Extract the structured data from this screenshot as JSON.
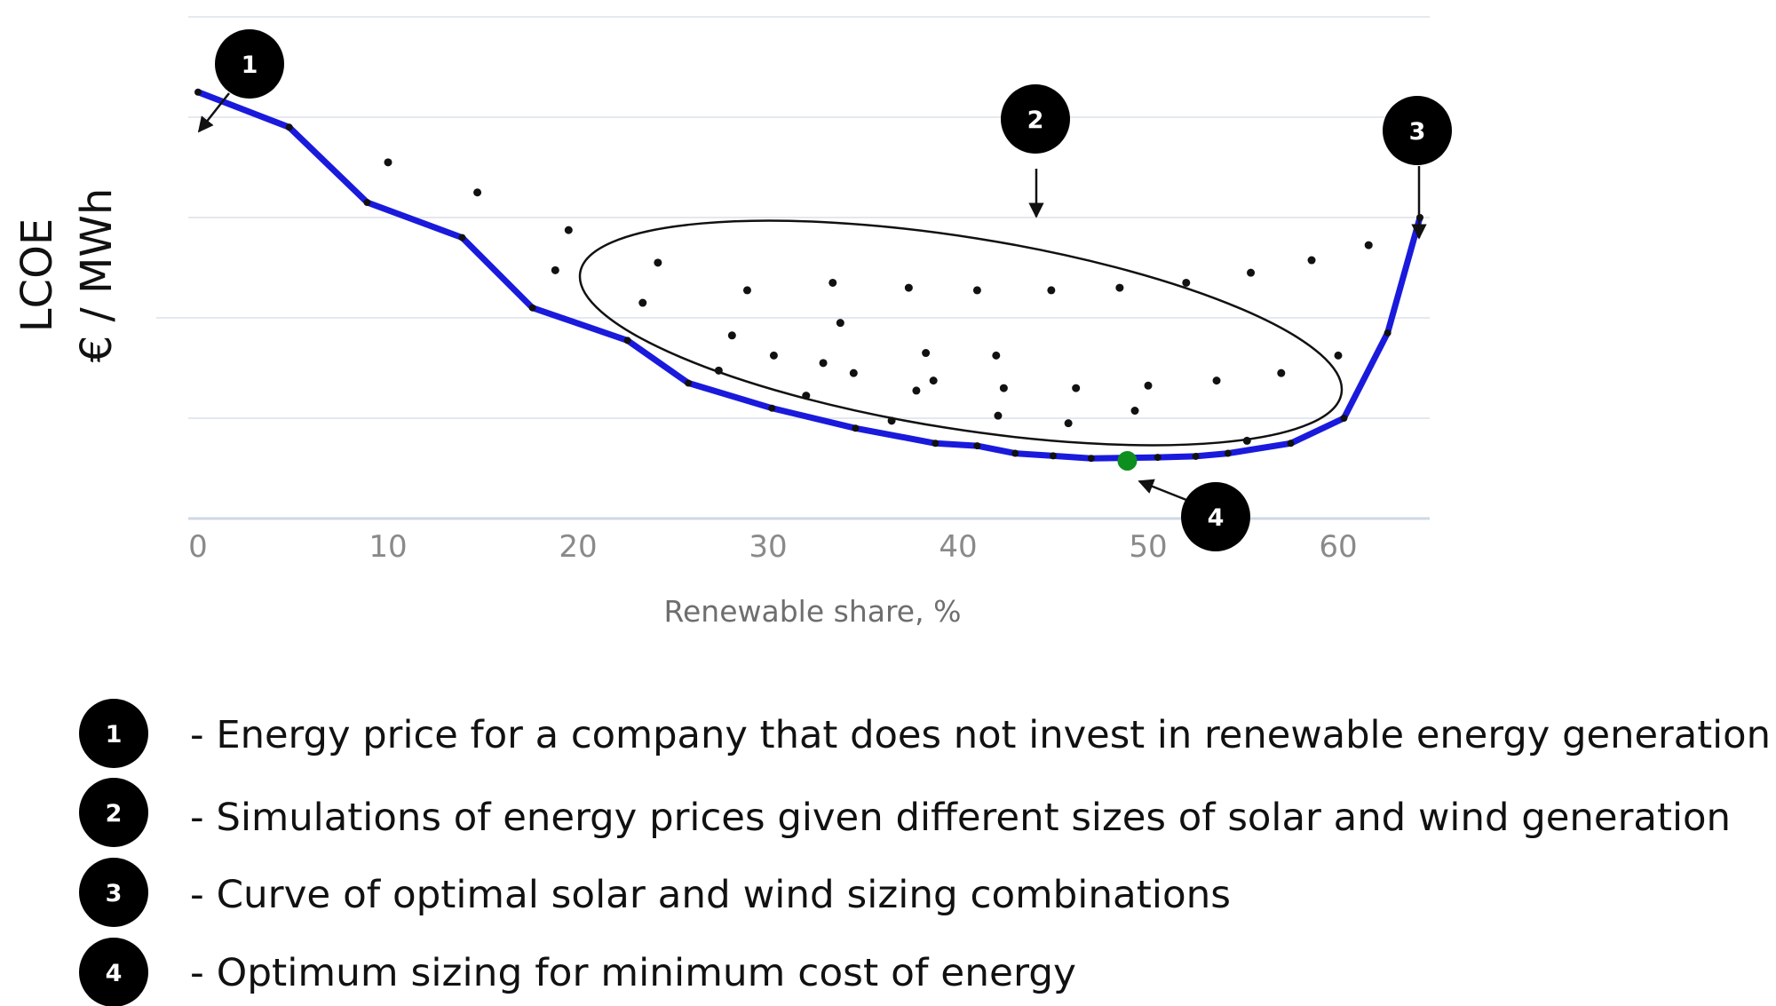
{
  "chart_data": {
    "type": "line",
    "title": "",
    "xlabel": "Renewable share, %",
    "ylabel_lines": [
      "LCOE",
      "€ / MWh"
    ],
    "xlim": [
      0,
      65
    ],
    "ylim": [
      0,
      100
    ],
    "xticks": [
      "0",
      "10",
      "20",
      "30",
      "40",
      "50",
      "60"
    ],
    "grid": true,
    "series": [
      {
        "name": "",
        "style": "line",
        "color": "#1a1adc",
        "x": [
          0,
          4.8,
          8.9,
          13.9,
          17.6,
          22.6,
          25.8,
          30.2,
          34.6,
          38.8,
          41,
          43,
          45,
          47,
          50.5,
          52.5,
          54.2,
          57.5,
          60.3,
          62.6,
          64.3
        ],
        "y": [
          85,
          78,
          63,
          56,
          42,
          35.5,
          27,
          22,
          18,
          15,
          14.5,
          13,
          12.5,
          12,
          12.2,
          12.4,
          13,
          15,
          20,
          37,
          60
        ]
      },
      {
        "name": "",
        "style": "scatter",
        "color": "#111111",
        "x": [
          10,
          14.7,
          18.8,
          19.5,
          23.4,
          24.2,
          27.4,
          28.1,
          28.9,
          30.3,
          32,
          32.9,
          33.4,
          33.8,
          34.5,
          36.5,
          37.4,
          37.8,
          38.3,
          38.7,
          41,
          42,
          42.1,
          42.4,
          44.9,
          45.8,
          46.2,
          48.5,
          49.3,
          50,
          52,
          53.6,
          55.2,
          55.4,
          57,
          58.6,
          61.6,
          60
        ],
        "y": [
          71,
          65,
          49.5,
          57.5,
          43,
          51,
          29.5,
          36.5,
          45.5,
          32.5,
          24.5,
          31,
          47,
          39,
          29,
          19.5,
          46,
          25.5,
          33,
          27.5,
          45.5,
          32.5,
          20.5,
          26,
          45.5,
          19,
          26,
          46,
          21.5,
          26.5,
          47,
          27.5,
          15.5,
          49,
          29,
          51.5,
          54.5,
          32.5
        ]
      }
    ],
    "highlight_point": {
      "x": 48.9,
      "y": 11.5,
      "color": "#0d8f1f"
    },
    "annotations": [
      {
        "label": "1",
        "target": [
          0,
          85
        ]
      },
      {
        "label": "2",
        "target_desc": "ellipse of simulations"
      },
      {
        "label": "3",
        "target": [
          64.3,
          60
        ]
      },
      {
        "label": "4",
        "target": [
          48.9,
          11.5
        ]
      }
    ]
  },
  "legend": [
    {
      "num": "1",
      "text": "- Energy price for a company that does not invest in renewable energy generation"
    },
    {
      "num": "2",
      "text": "- Simulations of energy prices given different sizes of solar and wind generation"
    },
    {
      "num": "3",
      "text": "- Curve of optimal solar and wind sizing combinations"
    },
    {
      "num": "4",
      "text": " - Optimum sizing for minimum cost of energy"
    }
  ]
}
